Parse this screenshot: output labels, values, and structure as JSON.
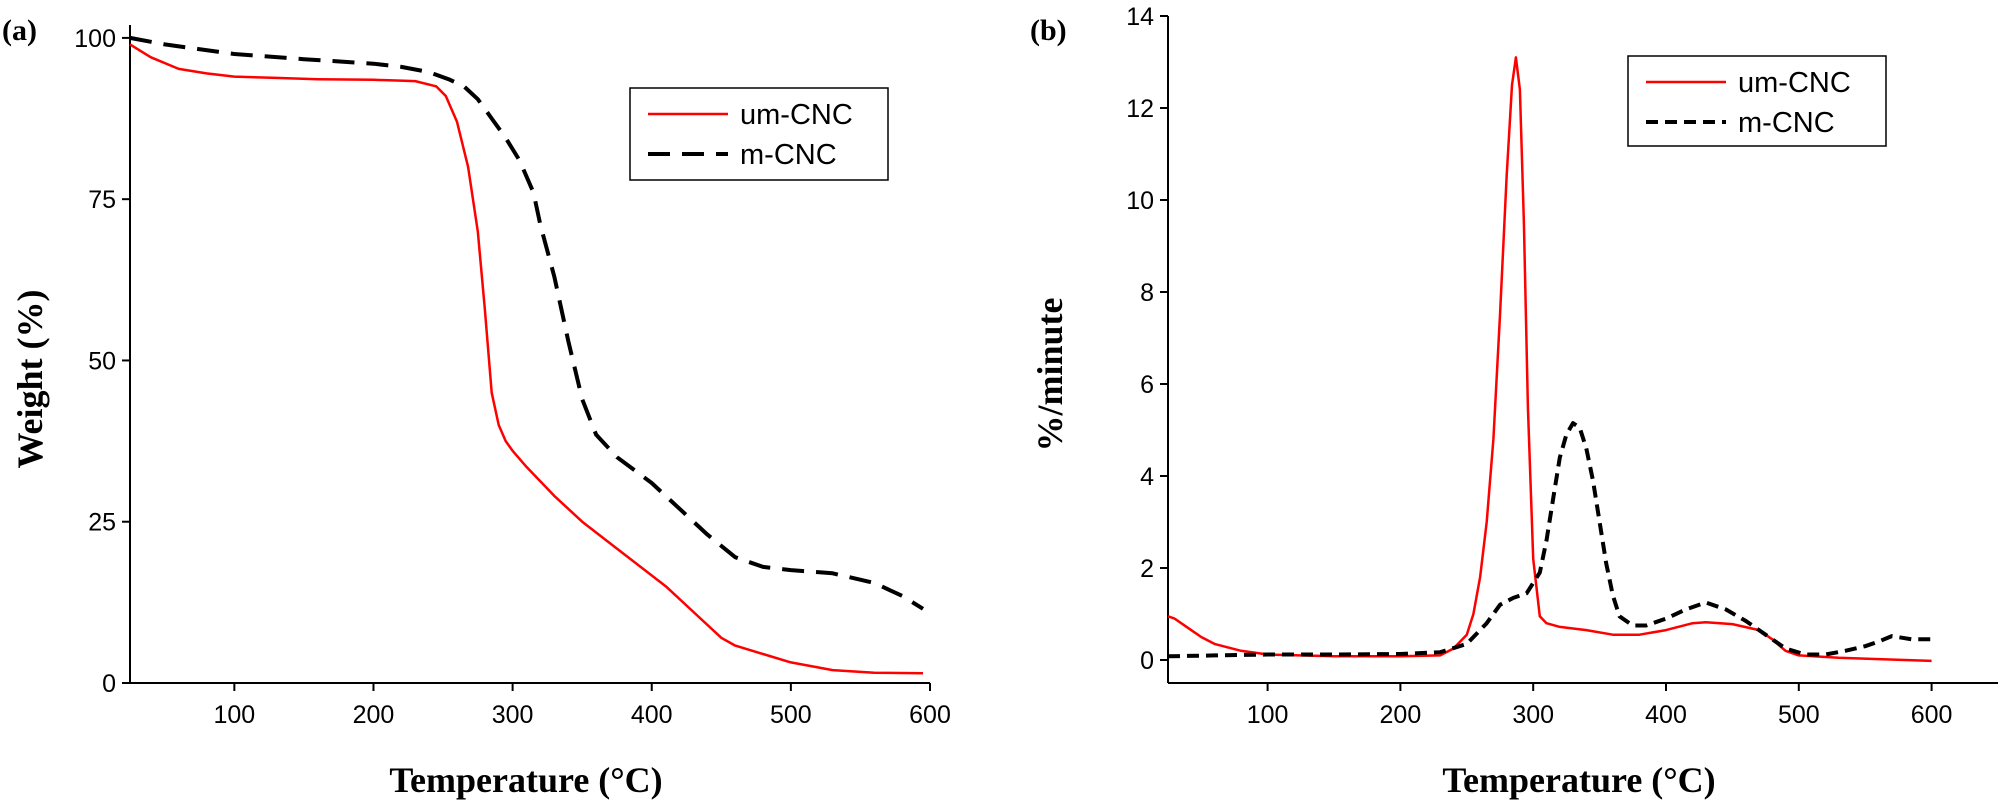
{
  "chart_data": [
    {
      "type": "line",
      "panel_label": "(a)",
      "xlabel": "Temperature (°C)",
      "ylabel": "Weight (%)",
      "xlim": [
        25,
        600
      ],
      "ylim": [
        0,
        102
      ],
      "xticks": [
        100,
        200,
        300,
        400,
        500,
        600
      ],
      "yticks": [
        0,
        25,
        50,
        75,
        100
      ],
      "legend_position": "top-right",
      "series": [
        {
          "name": "um-CNC",
          "color": "#ff0000",
          "style": "solid",
          "x": [
            25,
            40,
            60,
            80,
            100,
            130,
            160,
            200,
            230,
            245,
            252,
            260,
            268,
            275,
            280,
            285,
            290,
            295,
            300,
            310,
            330,
            350,
            380,
            410,
            430,
            450,
            460,
            480,
            500,
            530,
            560,
            595
          ],
          "y": [
            99,
            97,
            95.2,
            94.5,
            94,
            93.8,
            93.6,
            93.5,
            93.3,
            92.5,
            91,
            87,
            80,
            70,
            58,
            45,
            40,
            37.5,
            36,
            33.5,
            29,
            25,
            20,
            15,
            11,
            7,
            5.8,
            4.5,
            3.2,
            2,
            1.6,
            1.5
          ]
        },
        {
          "name": "m-CNC",
          "color": "#000000",
          "style": "dashed",
          "x": [
            25,
            50,
            100,
            150,
            200,
            220,
            240,
            255,
            265,
            275,
            285,
            295,
            305,
            315,
            320,
            330,
            340,
            350,
            360,
            375,
            400,
            420,
            440,
            460,
            480,
            500,
            530,
            560,
            580,
            595
          ],
          "y": [
            100,
            99,
            97.5,
            96.7,
            96,
            95.5,
            94.7,
            93.5,
            92.5,
            90.5,
            87.5,
            84.5,
            81,
            76,
            71,
            63,
            53,
            44,
            38.5,
            35,
            31,
            27,
            23,
            19.5,
            18,
            17.5,
            17,
            15.5,
            13.5,
            11.5
          ]
        }
      ]
    },
    {
      "type": "line",
      "panel_label": "(b)",
      "xlabel": "Temperature (°C)",
      "ylabel": "%/minute",
      "xlim": [
        25,
        650
      ],
      "ylim": [
        -0.5,
        14
      ],
      "xticks": [
        100,
        200,
        300,
        400,
        500,
        600
      ],
      "yticks": [
        0,
        2,
        4,
        6,
        8,
        10,
        12,
        14
      ],
      "legend_position": "top-right",
      "series": [
        {
          "name": "um-CNC",
          "color": "#ff0000",
          "style": "solid",
          "x": [
            25,
            30,
            40,
            50,
            60,
            80,
            100,
            150,
            200,
            230,
            240,
            250,
            255,
            260,
            265,
            270,
            275,
            280,
            284,
            287,
            290,
            293,
            296,
            300,
            305,
            310,
            320,
            340,
            360,
            380,
            400,
            420,
            430,
            450,
            470,
            480,
            490,
            500,
            530,
            560,
            580,
            600
          ],
          "y": [
            0.95,
            0.9,
            0.7,
            0.5,
            0.35,
            0.2,
            0.12,
            0.08,
            0.08,
            0.1,
            0.25,
            0.55,
            1.0,
            1.8,
            3.0,
            4.8,
            7.5,
            10.5,
            12.5,
            13.1,
            12.4,
            9.5,
            5.5,
            2.2,
            0.95,
            0.8,
            0.72,
            0.65,
            0.55,
            0.55,
            0.65,
            0.8,
            0.82,
            0.78,
            0.65,
            0.45,
            0.2,
            0.1,
            0.05,
            0.02,
            0.0,
            -0.02
          ]
        },
        {
          "name": "m-CNC",
          "color": "#000000",
          "style": "dashed",
          "x": [
            25,
            60,
            100,
            150,
            200,
            230,
            250,
            265,
            275,
            285,
            295,
            305,
            310,
            315,
            320,
            325,
            330,
            335,
            340,
            345,
            350,
            355,
            360,
            365,
            375,
            385,
            400,
            415,
            430,
            445,
            460,
            475,
            490,
            505,
            520,
            535,
            550,
            560,
            570,
            585,
            600
          ],
          "y": [
            0.08,
            0.1,
            0.12,
            0.12,
            0.13,
            0.17,
            0.35,
            0.8,
            1.2,
            1.35,
            1.45,
            1.9,
            2.6,
            3.5,
            4.4,
            4.9,
            5.15,
            5.05,
            4.6,
            3.9,
            3.0,
            2.1,
            1.4,
            0.95,
            0.75,
            0.75,
            0.9,
            1.1,
            1.25,
            1.1,
            0.85,
            0.55,
            0.25,
            0.12,
            0.12,
            0.2,
            0.3,
            0.4,
            0.52,
            0.45,
            0.45
          ]
        }
      ]
    }
  ]
}
